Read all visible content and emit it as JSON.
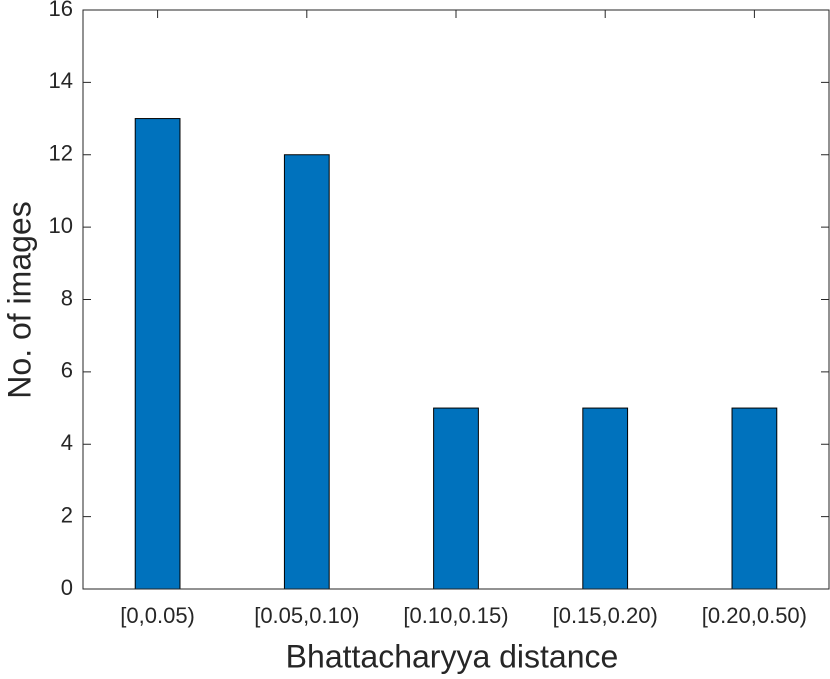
{
  "chart_data": {
    "type": "bar",
    "x_label": "Bhattacharyya distance",
    "y_label": "No. of images",
    "categories": [
      "[0,0.05)",
      "[0.05,0.10)",
      "[0.10,0.15)",
      "[0.15,0.20)",
      "[0.20,0.50)"
    ],
    "values": [
      13,
      12,
      5,
      5,
      5
    ],
    "color": "#0072bd",
    "ylim": [
      0,
      16
    ],
    "yticks": [
      0,
      2,
      4,
      6,
      8,
      10,
      12,
      14,
      16
    ],
    "grid": false
  }
}
